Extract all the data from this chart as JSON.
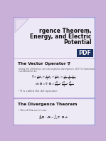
{
  "title_line1": "rgence Theorem,",
  "title_line2": "Energy, and Electric",
  "title_line3": "Potential",
  "slide1_heading": "The Vector Operator ∇",
  "slide1_body1": "Using the definition, we can express divergence of D (in Cartesian",
  "slide1_body2": "coordinates) as:",
  "slide1_eq1a": "$\\nabla = \\frac{\\partial}{\\partial x}\\hat{a}_x + \\frac{\\partial}{\\partial y}\\hat{a}_y + \\frac{\\partial}{\\partial z}\\hat{a}_z = \\left(\\frac{\\partial}{\\partial x}, \\frac{\\partial}{\\partial y}, \\frac{\\partial}{\\partial z}\\right)$",
  "slide1_eq2": "$div\\,\\mathbf{D} = \\nabla\\cdot\\mathbf{D} = \\frac{\\partial D_x}{\\partial x} + \\frac{\\partial D_y}{\\partial y} + \\frac{\\partial D_z}{\\partial z}$",
  "slide1_note": "• ∇ is called the del operator.",
  "slide2_heading": "The Divergence Theorem",
  "slide2_body1": "• Recall Gauss’s Law:",
  "bg_gradient_colors": [
    "#b090d0",
    "#d090d0",
    "#80a0e0"
  ],
  "card_bg": "#eeeaf5",
  "title_card_bg": "#e8e4f4",
  "title_text_color": "#111111",
  "heading_color": "#111111",
  "body_color": "#555555",
  "eq_color": "#111111",
  "pdf_badge_bg": "#1a3060",
  "pdf_badge_text": "#ffffff",
  "fold_color": "#d0c8e8",
  "border_color": "#c0b0d8"
}
